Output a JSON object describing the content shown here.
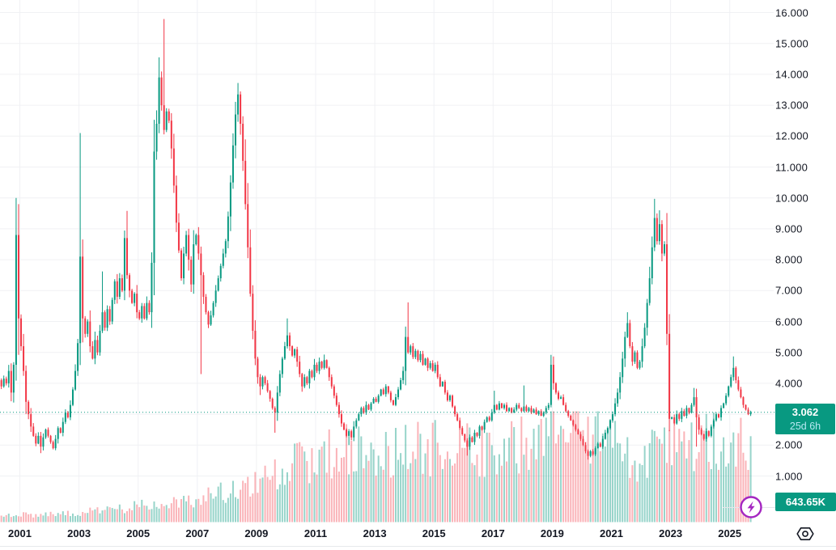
{
  "price_axis": {
    "ticks": [
      "16.000",
      "15.000",
      "14.000",
      "13.000",
      "12.000",
      "11.000",
      "10.000",
      "9.000",
      "8.000",
      "7.000",
      "6.000",
      "5.000",
      "4.000",
      "3.000",
      "2.000",
      "1.000"
    ],
    "last_price_label": "3.062",
    "countdown": "25d 6h",
    "last_volume_label": "643.65K"
  },
  "time_axis": {
    "ticks": [
      "2001",
      "2003",
      "2005",
      "2007",
      "2009",
      "2011",
      "2013",
      "2015",
      "2017",
      "2019",
      "2021",
      "2023",
      "2025"
    ]
  },
  "icons": {
    "flash_icon_color": "#a426c1",
    "hex_eye_color": "#131722"
  },
  "chart_data": {
    "type": "candlestick",
    "interval": "1 month",
    "title": "",
    "xlabel": "",
    "ylabel": "",
    "x_range_years": [
      2000.33,
      2026.2
    ],
    "y_range": [
      0.55,
      16.4
    ],
    "grid": true,
    "y_gridlines": [
      1,
      2,
      3,
      4,
      5,
      6,
      7,
      8,
      9,
      10,
      11,
      12,
      13,
      14,
      15,
      16
    ],
    "x_gridline_years": [
      2001,
      2003,
      2005,
      2007,
      2009,
      2011,
      2013,
      2015,
      2017,
      2019,
      2021,
      2023,
      2025
    ],
    "last_price": 3.062,
    "current_price_line": {
      "value": 3.062,
      "style": "dotted",
      "color": "#089981"
    },
    "colors": {
      "up": "#089981",
      "down": "#f23645",
      "volume_up": "rgba(8,153,129,0.42)",
      "volume_down": "rgba(242,54,69,0.38)",
      "grid": "#f0f1f4",
      "label_bg": "#089981"
    },
    "start_month": {
      "year": 2000,
      "month": 5
    },
    "monthly_close": {
      "2000": [
        3.9,
        4.15,
        4.0,
        4.4,
        3.7,
        4.6,
        8.8,
        6.1
      ],
      "2001": [
        5.2,
        4.4,
        3.4,
        3.0,
        2.6,
        2.3,
        2.05,
        2.3,
        1.95,
        2.25,
        2.5,
        2.3
      ],
      "2002": [
        2.1,
        1.9,
        2.2,
        2.55,
        2.4,
        2.75,
        3.05,
        2.9,
        3.3,
        3.8,
        4.4,
        5.3
      ],
      "2003": [
        8.1,
        6.1,
        5.6,
        6.0,
        5.2,
        4.8,
        5.4,
        5.0,
        5.7,
        6.3,
        5.8,
        6.4
      ],
      "2004": [
        6.0,
        6.7,
        7.3,
        6.8,
        7.4,
        7.0,
        8.7,
        7.5,
        7.0,
        6.6,
        6.9,
        6.3
      ],
      "2005": [
        6.1,
        6.5,
        6.1,
        6.6,
        6.3,
        7.9,
        11.5,
        12.4,
        13.9,
        13.0,
        12.2,
        12.8
      ],
      "2006": [
        12.5,
        11.6,
        10.4,
        9.2,
        8.3,
        7.4,
        8.2,
        8.8,
        8.0,
        7.2,
        8.5,
        8.8
      ],
      "2007": [
        8.2,
        7.5,
        6.8,
        6.3,
        5.9,
        6.2,
        6.6,
        7.0,
        7.4,
        7.8,
        8.2,
        8.6
      ],
      "2008": [
        9.4,
        10.5,
        11.7,
        12.7,
        13.35,
        12.4,
        11.2,
        9.8,
        8.4,
        6.9,
        5.7,
        4.8
      ],
      "2009": [
        4.2,
        3.9,
        4.2,
        4.0,
        3.75,
        3.5,
        3.2,
        3.05,
        3.7,
        4.3,
        4.8,
        5.2
      ],
      "2010": [
        5.55,
        5.2,
        4.9,
        5.1,
        4.7,
        4.3,
        3.9,
        4.2,
        4.0,
        4.4,
        4.2,
        4.6
      ],
      "2011": [
        4.4,
        4.7,
        4.5,
        4.75,
        4.5,
        4.2,
        3.9,
        3.6,
        3.3,
        3.0,
        2.7,
        2.5
      ],
      "2012": [
        2.3,
        2.45,
        2.25,
        2.6,
        2.8,
        3.0,
        3.2,
        3.05,
        3.3,
        3.15,
        3.35,
        3.5
      ],
      "2013": [
        3.4,
        3.6,
        3.8,
        3.65,
        3.9,
        3.7,
        3.45,
        3.3,
        3.55,
        3.8,
        4.1,
        4.4
      ],
      "2014": [
        5.5,
        5.0,
        5.2,
        4.85,
        5.05,
        4.75,
        4.95,
        4.6,
        4.8,
        4.5,
        4.65,
        4.4
      ],
      "2015": [
        4.6,
        4.2,
        3.9,
        4.05,
        3.7,
        3.45,
        3.6,
        3.25,
        3.0,
        2.8,
        2.55,
        2.35
      ],
      "2016": [
        2.15,
        1.95,
        2.25,
        2.1,
        2.4,
        2.3,
        2.6,
        2.5,
        2.75,
        2.9,
        2.8,
        3.05
      ],
      "2017": [
        3.3,
        3.15,
        3.35,
        3.2,
        3.3,
        3.1,
        3.2,
        3.05,
        3.15,
        3.3,
        3.2,
        3.1
      ],
      "2018": [
        3.25,
        3.1,
        3.2,
        3.05,
        3.15,
        3.0,
        3.1,
        2.95,
        3.05,
        3.2,
        3.3,
        4.6
      ],
      "2019": [
        4.0,
        3.7,
        3.5,
        3.55,
        3.3,
        3.1,
        2.95,
        2.8,
        2.65,
        2.5,
        2.35,
        2.2
      ],
      "2020": [
        2.0,
        1.8,
        1.65,
        1.8,
        1.7,
        1.9,
        2.05,
        1.95,
        2.2,
        2.4,
        2.55,
        2.8
      ],
      "2021": [
        3.0,
        3.35,
        3.7,
        4.2,
        4.8,
        5.5,
        5.95,
        5.2,
        4.7,
        5.0,
        4.5,
        4.7
      ],
      "2022": [
        5.2,
        5.8,
        6.6,
        7.4,
        8.4,
        9.35,
        8.6,
        9.15,
        8.2,
        8.5,
        5.6,
        2.85
      ],
      "2023": [
        2.9,
        2.7,
        3.0,
        2.85,
        3.1,
        2.95,
        3.2,
        3.05,
        3.3,
        3.55,
        2.9,
        2.5
      ],
      "2024": [
        2.35,
        2.2,
        2.45,
        2.3,
        2.6,
        2.8,
        3.0,
        2.9,
        3.2,
        3.35,
        3.6,
        3.9
      ],
      "2025": [
        4.2,
        4.5,
        4.1,
        3.8,
        3.55,
        3.3,
        3.15,
        3.0,
        3.062
      ]
    },
    "wick_overrides": {
      "2000-11": {
        "h": 10.0
      },
      "2001-09": {
        "l": 1.74
      },
      "2003-01": {
        "h": 12.1
      },
      "2003-10": {
        "h": 7.62
      },
      "2004-08": {
        "h": 9.58
      },
      "2005-09": {
        "h": 14.55
      },
      "2005-11": {
        "h": 15.79
      },
      "2007-02": {
        "l": 4.3
      },
      "2008-05": {
        "h": 13.72
      },
      "2009-02": {
        "l": 3.62
      },
      "2009-08": {
        "l": 2.4
      },
      "2010-01": {
        "h": 6.1
      },
      "2011-04": {
        "h": 4.93
      },
      "2012-02": {
        "l": 2.0
      },
      "2014-02": {
        "h": 6.62
      },
      "2016-02": {
        "l": 1.66
      },
      "2017-01": {
        "h": 3.76
      },
      "2018-01": {
        "h": 3.93
      },
      "2018-12": {
        "h": 4.92
      },
      "2020-03": {
        "l": 1.53
      },
      "2021-07": {
        "h": 6.3
      },
      "2022-06": {
        "h": 9.97
      },
      "2022-08": {
        "h": 9.6
      },
      "2022-12": {
        "l": 2.45
      },
      "2023-10": {
        "h": 3.85
      },
      "2023-11": {
        "l": 1.95
      },
      "2025-02": {
        "h": 4.87
      }
    },
    "volume_profile_k": [
      [
        2000.4,
        50
      ],
      [
        2002.0,
        60
      ],
      [
        2004.0,
        90
      ],
      [
        2005.0,
        120
      ],
      [
        2006.0,
        130
      ],
      [
        2007.0,
        170
      ],
      [
        2008.0,
        240
      ],
      [
        2009.0,
        300
      ],
      [
        2010.0,
        430
      ],
      [
        2011.0,
        480
      ],
      [
        2012.0,
        560
      ],
      [
        2013.0,
        520
      ],
      [
        2014.0,
        580
      ],
      [
        2015.0,
        560
      ],
      [
        2016.0,
        540
      ],
      [
        2017.0,
        520
      ],
      [
        2018.0,
        600
      ],
      [
        2019.0,
        680
      ],
      [
        2020.0,
        700
      ],
      [
        2021.0,
        560
      ],
      [
        2022.0,
        480
      ],
      [
        2023.0,
        540
      ],
      [
        2024.0,
        620
      ],
      [
        2025.7,
        644
      ]
    ],
    "volume_overrides_k": {
      "2018-12": 830,
      "2020-03": 790,
      "2025-09": 643.65
    },
    "last_volume_k": 643.65
  }
}
